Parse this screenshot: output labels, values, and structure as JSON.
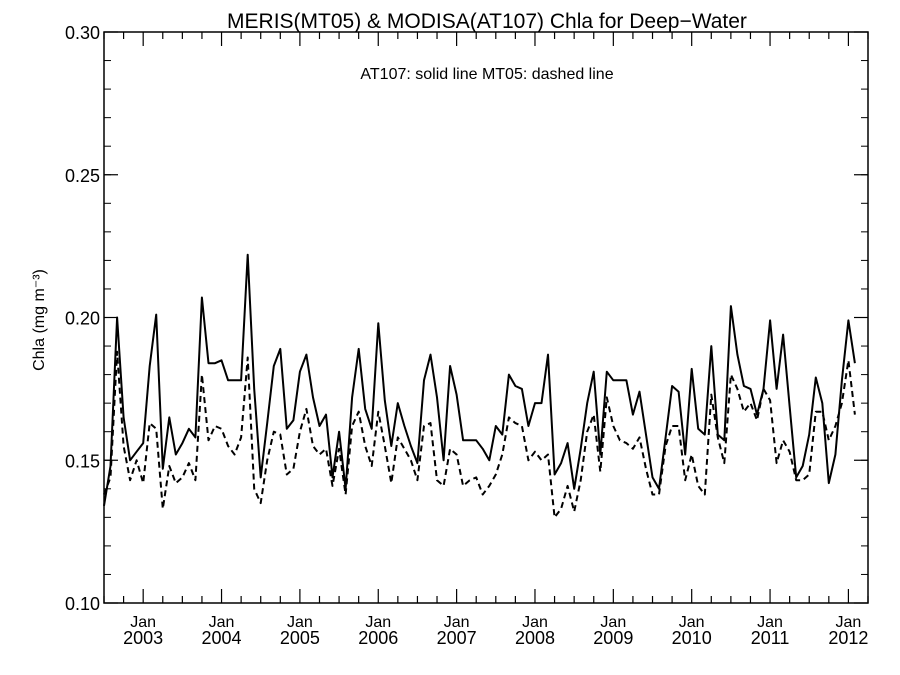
{
  "chart_data": {
    "type": "line",
    "title": "MERIS(MT05) & MODISA(AT107)  Chla for Deep−Water",
    "annotation": "AT107: solid line   MT05: dashed line",
    "ylabel": "Chla (mg m⁻³)",
    "xlabel": "",
    "ylim": [
      0.1,
      0.3
    ],
    "xlim": [
      "2002-07",
      "2012-04"
    ],
    "grid": false,
    "yticks": [
      {
        "value": 0.1,
        "label": "0.10"
      },
      {
        "value": 0.15,
        "label": "0.15"
      },
      {
        "value": 0.2,
        "label": "0.20"
      },
      {
        "value": 0.25,
        "label": "0.25"
      },
      {
        "value": 0.3,
        "label": "0.30"
      }
    ],
    "xticks": [
      {
        "date": "2003-01",
        "month": "Jan",
        "year": "2003"
      },
      {
        "date": "2004-01",
        "month": "Jan",
        "year": "2004"
      },
      {
        "date": "2005-01",
        "month": "Jan",
        "year": "2005"
      },
      {
        "date": "2006-01",
        "month": "Jan",
        "year": "2006"
      },
      {
        "date": "2007-01",
        "month": "Jan",
        "year": "2007"
      },
      {
        "date": "2008-01",
        "month": "Jan",
        "year": "2008"
      },
      {
        "date": "2009-01",
        "month": "Jan",
        "year": "2009"
      },
      {
        "date": "2010-01",
        "month": "Jan",
        "year": "2010"
      },
      {
        "date": "2011-01",
        "month": "Jan",
        "year": "2011"
      },
      {
        "date": "2012-01",
        "month": "Jan",
        "year": "2012"
      }
    ],
    "x_start": "2002-07",
    "x_step": "1 month",
    "series": [
      {
        "name": "AT107",
        "style": "solid",
        "color": "#000000",
        "values": [
          0.134,
          0.148,
          0.2,
          0.165,
          0.15,
          0.153,
          0.156,
          0.183,
          0.201,
          0.147,
          0.165,
          0.152,
          0.156,
          0.161,
          0.158,
          0.207,
          0.184,
          0.184,
          0.185,
          0.178,
          0.178,
          0.178,
          0.222,
          0.175,
          0.144,
          0.163,
          0.183,
          0.189,
          0.161,
          0.164,
          0.181,
          0.187,
          0.172,
          0.162,
          0.166,
          0.144,
          0.16,
          0.14,
          0.172,
          0.189,
          0.168,
          0.161,
          0.198,
          0.171,
          0.155,
          0.17,
          0.162,
          0.155,
          0.149,
          0.178,
          0.187,
          0.172,
          0.15,
          0.183,
          0.173,
          0.157,
          0.157,
          0.157,
          0.154,
          0.15,
          0.162,
          0.159,
          0.18,
          0.176,
          0.175,
          0.162,
          0.17,
          0.17,
          0.187,
          0.145,
          0.149,
          0.156,
          0.14,
          0.154,
          0.17,
          0.181,
          0.152,
          0.181,
          0.178,
          0.178,
          0.178,
          0.166,
          0.174,
          0.159,
          0.144,
          0.14,
          0.158,
          0.176,
          0.174,
          0.152,
          0.182,
          0.161,
          0.159,
          0.19,
          0.159,
          0.157,
          0.204,
          0.187,
          0.176,
          0.175,
          0.166,
          0.175,
          0.199,
          0.175,
          0.194,
          0.169,
          0.144,
          0.148,
          0.159,
          0.179,
          0.17,
          0.142,
          0.152,
          0.178,
          0.199,
          0.184
        ]
      },
      {
        "name": "MT05",
        "style": "dashed",
        "color": "#000000",
        "values": [
          0.138,
          0.144,
          0.188,
          0.155,
          0.143,
          0.15,
          0.142,
          0.163,
          0.161,
          0.133,
          0.148,
          0.142,
          0.144,
          0.149,
          0.143,
          0.18,
          0.157,
          0.162,
          0.161,
          0.155,
          0.152,
          0.158,
          0.186,
          0.14,
          0.135,
          0.15,
          0.16,
          0.159,
          0.145,
          0.147,
          0.16,
          0.168,
          0.155,
          0.152,
          0.154,
          0.141,
          0.154,
          0.138,
          0.162,
          0.167,
          0.155,
          0.148,
          0.167,
          0.155,
          0.142,
          0.158,
          0.154,
          0.15,
          0.143,
          0.162,
          0.163,
          0.143,
          0.141,
          0.154,
          0.152,
          0.141,
          0.143,
          0.144,
          0.138,
          0.141,
          0.145,
          0.152,
          0.165,
          0.163,
          0.162,
          0.15,
          0.153,
          0.15,
          0.152,
          0.13,
          0.133,
          0.141,
          0.132,
          0.143,
          0.16,
          0.166,
          0.146,
          0.172,
          0.162,
          0.157,
          0.156,
          0.154,
          0.158,
          0.147,
          0.138,
          0.138,
          0.155,
          0.162,
          0.162,
          0.143,
          0.152,
          0.141,
          0.138,
          0.173,
          0.158,
          0.149,
          0.18,
          0.175,
          0.167,
          0.17,
          0.164,
          0.175,
          0.171,
          0.149,
          0.157,
          0.153,
          0.143,
          0.143,
          0.145,
          0.167,
          0.167,
          0.157,
          0.162,
          0.17,
          0.185,
          0.166
        ]
      }
    ]
  }
}
